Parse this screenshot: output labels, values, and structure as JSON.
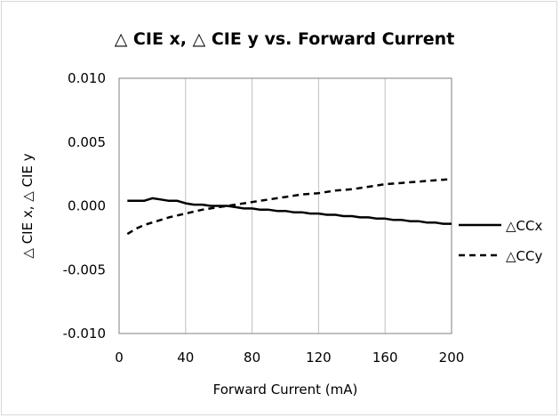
{
  "chart_data": {
    "type": "line",
    "title": "△ CIE x, △ CIE y vs. Forward Current",
    "xlabel": "Forward Current (mA)",
    "ylabel": "△ CIE x, △ CIE y",
    "xlim": [
      0,
      200
    ],
    "ylim": [
      -0.01,
      0.01
    ],
    "xticks": [
      "0",
      "40",
      "80",
      "120",
      "160",
      "200"
    ],
    "yticks": [
      "0.010",
      "0.005",
      "0.000",
      "-0.005",
      "-0.010"
    ],
    "grid": "vertical",
    "legend_position": "right",
    "series": [
      {
        "name": "△CCx",
        "style": "solid",
        "color": "#000000",
        "x": [
          5,
          10,
          15,
          20,
          25,
          30,
          35,
          40,
          45,
          50,
          55,
          60,
          65,
          70,
          75,
          80,
          85,
          90,
          95,
          100,
          105,
          110,
          115,
          120,
          125,
          130,
          135,
          140,
          145,
          150,
          155,
          160,
          165,
          170,
          175,
          180,
          185,
          190,
          195,
          200
        ],
        "y": [
          0.0004,
          0.0004,
          0.0004,
          0.0006,
          0.0005,
          0.0004,
          0.0004,
          0.0002,
          0.0001,
          0.0001,
          0.0,
          0.0,
          0.0,
          -0.0001,
          -0.0002,
          -0.0002,
          -0.0003,
          -0.0003,
          -0.0004,
          -0.0004,
          -0.0005,
          -0.0005,
          -0.0006,
          -0.0006,
          -0.0007,
          -0.0007,
          -0.0008,
          -0.0008,
          -0.0009,
          -0.0009,
          -0.001,
          -0.001,
          -0.0011,
          -0.0011,
          -0.0012,
          -0.0012,
          -0.0013,
          -0.0013,
          -0.0014,
          -0.0014
        ]
      },
      {
        "name": "△CCy",
        "style": "dashed",
        "color": "#000000",
        "x": [
          5,
          10,
          15,
          20,
          25,
          30,
          40,
          50,
          60,
          70,
          80,
          90,
          100,
          110,
          120,
          130,
          140,
          150,
          160,
          170,
          180,
          190,
          200
        ],
        "y": [
          -0.0022,
          -0.0018,
          -0.0015,
          -0.0013,
          -0.0011,
          -0.0009,
          -0.0006,
          -0.0003,
          -0.0001,
          0.0001,
          0.0003,
          0.0005,
          0.0007,
          0.0009,
          0.001,
          0.0012,
          0.0013,
          0.0015,
          0.0017,
          0.0018,
          0.0019,
          0.002,
          0.0021
        ]
      }
    ]
  }
}
